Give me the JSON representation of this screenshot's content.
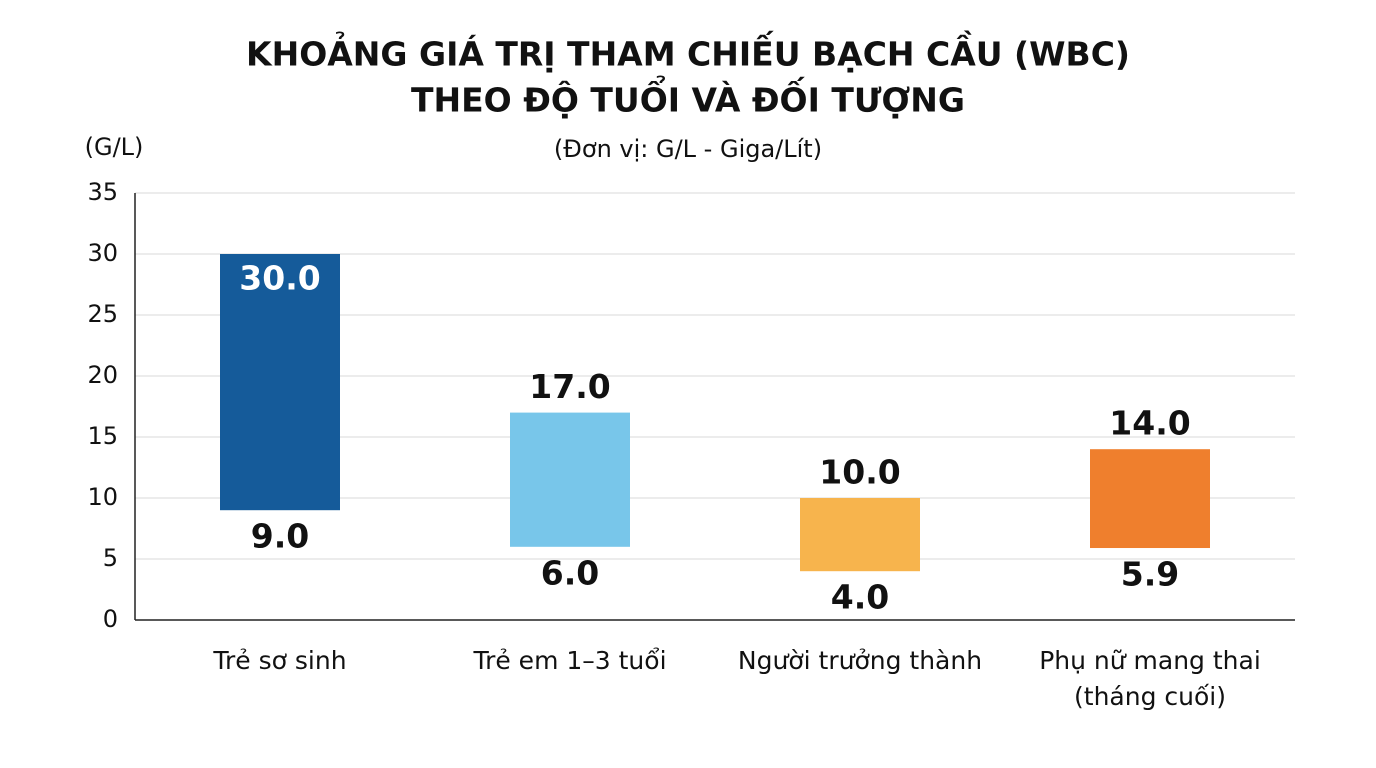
{
  "chart_data": {
    "type": "range-bar",
    "title": [
      "KHOẢNG GIÁ TRỊ THAM CHIẾU BẠCH CẦU (WBC)",
      "THEO ĐỘ TUỔI VÀ ĐỐI TƯỢNG"
    ],
    "subtitle": "(Đơn vị: G/L - Giga/Lít)",
    "y_label": "(G/L)",
    "categories": [
      "Trẻ sơ sinh",
      "Trẻ em 1–3 tuổi",
      "Người trưởng thành",
      [
        "Phụ nữ mang thai",
        "(tháng cuối)"
      ]
    ],
    "values": [
      [
        9,
        30
      ],
      [
        6,
        17
      ],
      [
        4,
        10
      ],
      [
        5.9,
        14
      ]
    ],
    "value_labels": [
      [
        "9.0",
        "30.0"
      ],
      [
        "6.0",
        "17.0"
      ],
      [
        "4.0",
        "10.0"
      ],
      [
        "5.9",
        "14.0"
      ]
    ],
    "colors": [
      "#155b9a",
      "#78c6ea",
      "#f7b44d",
      "#ef7f2d"
    ],
    "ylim": [
      0,
      35
    ],
    "yticks": [
      0,
      5,
      10,
      15,
      20,
      25,
      30,
      35
    ],
    "grid": true
  }
}
